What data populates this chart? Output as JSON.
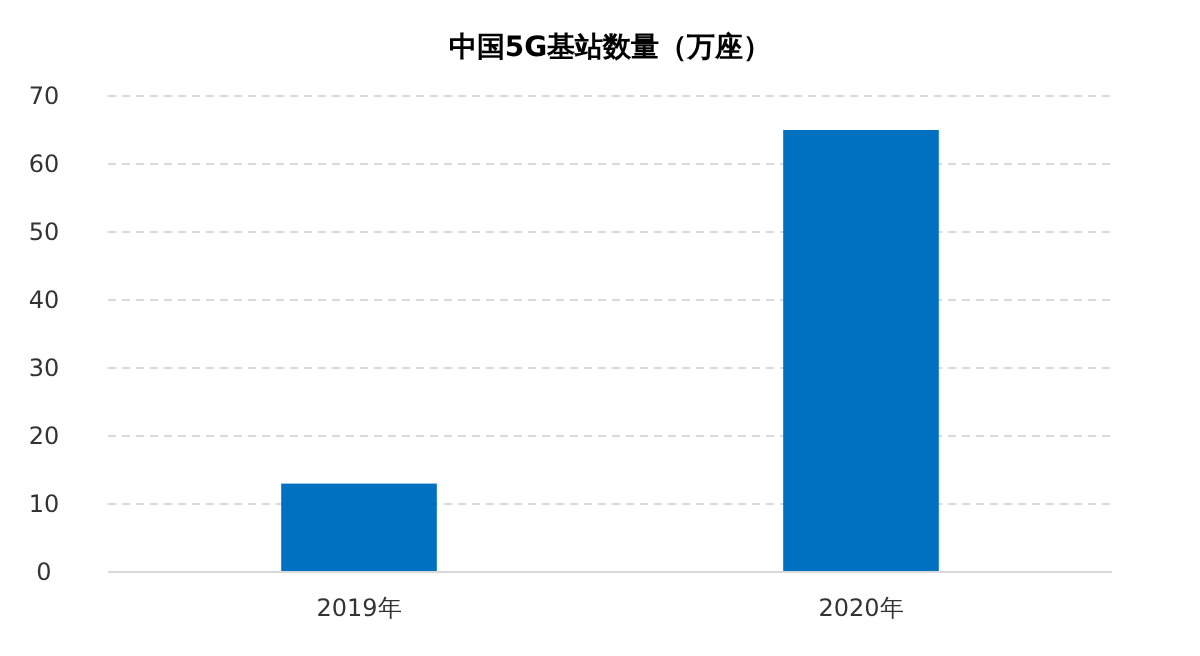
{
  "chart_data": {
    "type": "bar",
    "title": "中国5G基站数量（万座）",
    "categories": [
      "2019年",
      "2020年"
    ],
    "values": [
      13,
      65
    ],
    "color": "#0070c0",
    "ylim": [
      0,
      70
    ],
    "yticks": [
      0,
      10,
      20,
      30,
      40,
      50,
      60,
      70
    ],
    "grid": "y"
  }
}
